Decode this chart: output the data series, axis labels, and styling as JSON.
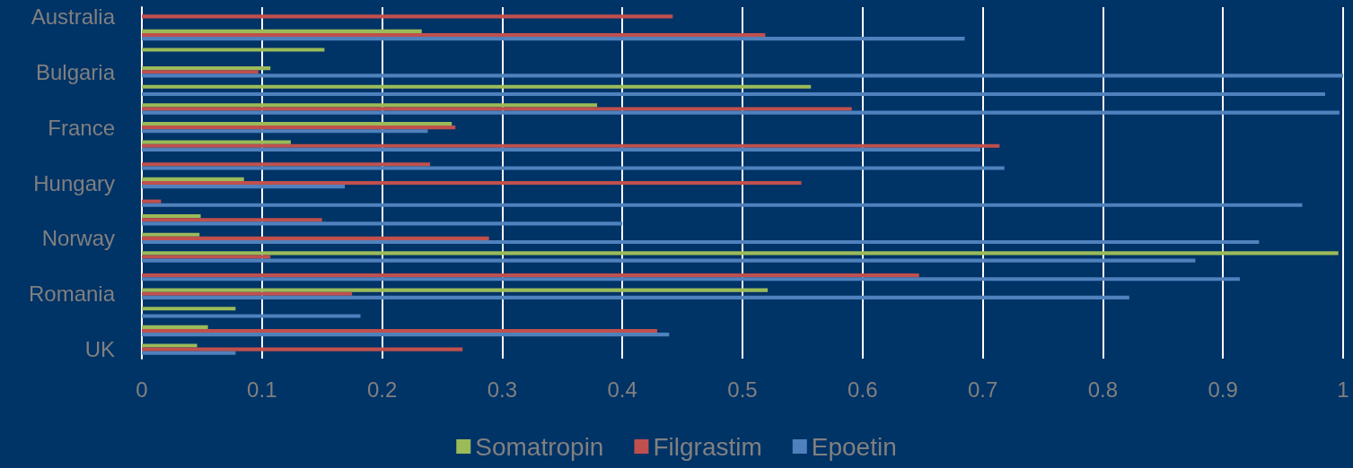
{
  "chart_data": {
    "type": "bar",
    "orientation": "horizontal",
    "categories": [
      "Australia",
      null,
      null,
      "Bulgaria",
      null,
      null,
      "France",
      null,
      null,
      "Hungary",
      null,
      null,
      "Norway",
      null,
      null,
      "Romania",
      null,
      null,
      "UK"
    ],
    "series": [
      {
        "name": "Somatropin",
        "color": "#9bbb59",
        "values": [
          null,
          0.233,
          0.152,
          0.107,
          0.557,
          0.379,
          0.258,
          0.124,
          null,
          0.085,
          null,
          0.049,
          0.048,
          0.996,
          null,
          0.521,
          0.078,
          0.055,
          0.046
        ]
      },
      {
        "name": "Filgrastim",
        "color": "#c0504d",
        "values": [
          0.442,
          0.519,
          null,
          0.097,
          null,
          0.591,
          0.261,
          0.714,
          0.24,
          0.549,
          0.016,
          0.15,
          0.289,
          0.107,
          0.647,
          0.175,
          null,
          0.429,
          0.267
        ]
      },
      {
        "name": "Epoetin",
        "color": "#4f81bd",
        "values": [
          null,
          0.685,
          null,
          1.0,
          0.985,
          0.997,
          0.238,
          0.698,
          0.718,
          0.169,
          0.966,
          0.4,
          0.93,
          0.877,
          0.914,
          0.822,
          0.182,
          0.439,
          0.078
        ]
      }
    ],
    "xlim": [
      0,
      1
    ],
    "xticks": [
      0,
      0.1,
      0.2,
      0.3,
      0.4,
      0.5,
      0.6,
      0.7,
      0.8,
      0.9,
      1
    ],
    "grid": "x",
    "legend": "bottom"
  }
}
